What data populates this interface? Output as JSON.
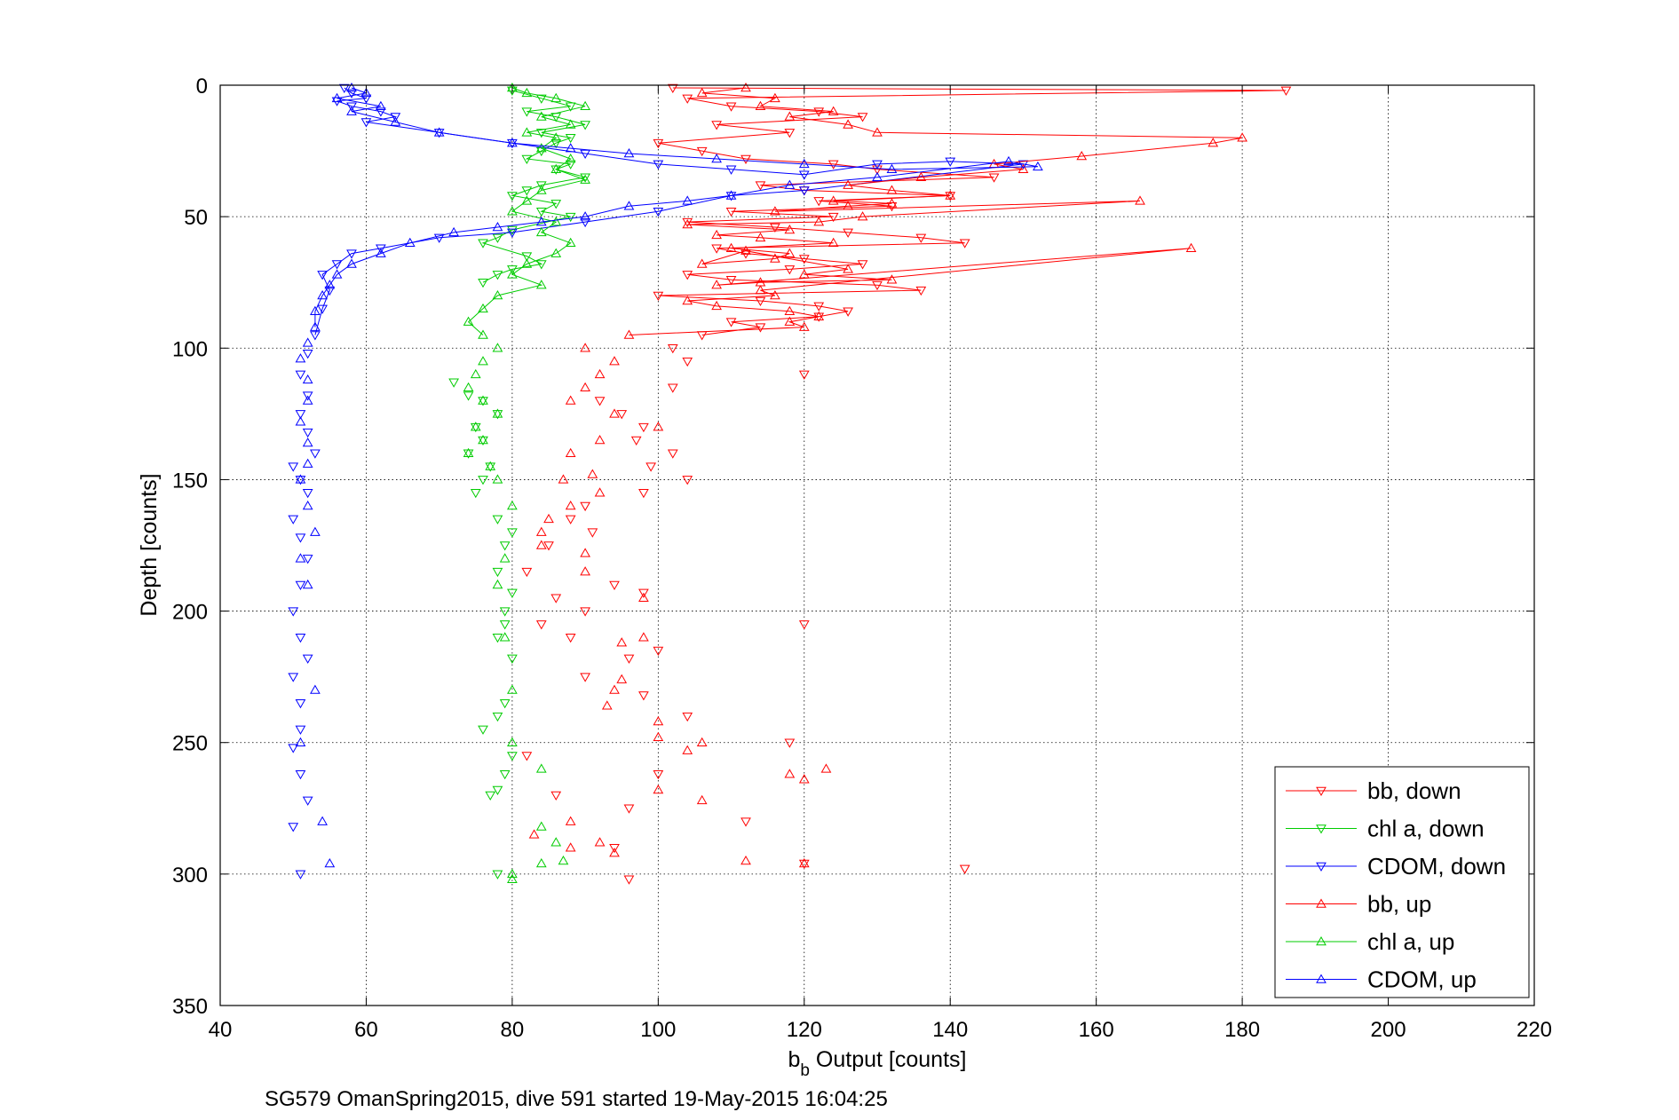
{
  "chart_data": {
    "type": "scatter",
    "title": "",
    "xlabel_main": "b",
    "xlabel_sub": "b",
    "xlabel_rest": " Output [counts]",
    "ylabel": "Depth [counts]",
    "footer": "SG579 OmanSpring2015, dive 591 started 19-May-2015 16:04:25",
    "xlim": [
      40,
      220
    ],
    "ylim": [
      0,
      350
    ],
    "y_reversed": true,
    "grid": true,
    "legend_position": "bottom-right",
    "xticks": [
      "40",
      "60",
      "80",
      "100",
      "120",
      "140",
      "160",
      "180",
      "200",
      "220"
    ],
    "yticks": [
      "0",
      "50",
      "100",
      "150",
      "200",
      "250",
      "300",
      "350"
    ],
    "series": [
      {
        "name": "bb, down",
        "color": "#ff0000",
        "marker": "triangle-down",
        "x": [
          102,
          186,
          104,
          110,
          122,
          128,
          108,
          118,
          100,
          106,
          112,
          124,
          130,
          146,
          114,
          120,
          140,
          122,
          132,
          110,
          124,
          104,
          116,
          126,
          136,
          142,
          108,
          112,
          120,
          128,
          118,
          104,
          110,
          130,
          136,
          100,
          114,
          122,
          126,
          122,
          110,
          114,
          106,
          102,
          104,
          120,
          102,
          92,
          95,
          98,
          97,
          102,
          99,
          104,
          98,
          90,
          88,
          91,
          85,
          82,
          94,
          98,
          86,
          90,
          84,
          88,
          100,
          120,
          96,
          90,
          98,
          104,
          118,
          82,
          100,
          86,
          96,
          112,
          142,
          120,
          96,
          94
        ],
        "y": [
          1,
          2,
          5,
          8,
          10,
          12,
          15,
          18,
          22,
          25,
          28,
          30,
          32,
          35,
          38,
          40,
          42,
          44,
          46,
          48,
          50,
          52,
          54,
          56,
          58,
          60,
          62,
          64,
          66,
          68,
          70,
          72,
          74,
          76,
          78,
          80,
          82,
          84,
          86,
          88,
          90,
          92,
          95,
          100,
          105,
          110,
          115,
          120,
          125,
          130,
          135,
          140,
          145,
          150,
          155,
          160,
          165,
          170,
          175,
          185,
          190,
          193,
          195,
          200,
          205,
          210,
          215,
          205,
          218,
          225,
          232,
          240,
          250,
          255,
          262,
          270,
          275,
          280,
          298,
          296,
          302,
          290
        ]
      },
      {
        "name": "chl a, down",
        "color": "#00cc00",
        "marker": "triangle-down",
        "x": [
          80,
          84,
          88,
          82,
          86,
          90,
          84,
          88,
          86,
          84,
          82,
          88,
          86,
          90,
          84,
          82,
          80,
          86,
          84,
          88,
          80,
          78,
          76,
          82,
          84,
          80,
          78,
          76,
          72,
          74,
          76,
          78,
          75,
          76,
          74,
          77,
          76,
          75,
          78,
          80,
          79,
          78,
          80,
          79,
          79,
          78,
          80,
          79,
          78,
          76,
          80,
          79,
          78,
          77,
          78
        ],
        "y": [
          2,
          5,
          8,
          10,
          12,
          15,
          18,
          20,
          22,
          25,
          28,
          30,
          32,
          35,
          38,
          40,
          42,
          45,
          48,
          50,
          55,
          58,
          60,
          65,
          68,
          70,
          72,
          75,
          113,
          118,
          120,
          125,
          130,
          135,
          140,
          145,
          150,
          155,
          165,
          170,
          175,
          185,
          193,
          200,
          205,
          210,
          218,
          235,
          240,
          245,
          255,
          262,
          268,
          270,
          300
        ]
      },
      {
        "name": "CDOM, down",
        "color": "#0000ff",
        "marker": "triangle-down",
        "x": [
          57,
          58,
          60,
          56,
          58,
          62,
          64,
          60,
          70,
          80,
          90,
          100,
          110,
          120,
          130,
          140,
          150,
          120,
          110,
          100,
          90,
          80,
          70,
          62,
          58,
          56,
          54,
          55,
          54,
          53,
          52,
          51,
          52,
          51,
          52,
          53,
          50,
          51,
          52,
          50,
          51,
          52,
          51,
          50,
          51,
          52,
          50,
          51,
          51,
          50,
          51,
          52,
          50,
          51
        ],
        "y": [
          1,
          3,
          5,
          6,
          8,
          10,
          12,
          14,
          18,
          22,
          26,
          30,
          32,
          34,
          30,
          29,
          30,
          40,
          42,
          48,
          52,
          56,
          58,
          62,
          64,
          68,
          72,
          78,
          85,
          95,
          102,
          110,
          118,
          125,
          132,
          140,
          145,
          150,
          155,
          165,
          172,
          180,
          190,
          200,
          210,
          218,
          225,
          235,
          245,
          252,
          262,
          272,
          282,
          300
        ]
      },
      {
        "name": "bb, up",
        "color": "#ff0000",
        "marker": "triangle-up",
        "x": [
          112,
          106,
          116,
          114,
          124,
          118,
          126,
          130,
          180,
          176,
          158,
          146,
          150,
          136,
          126,
          132,
          140,
          124,
          132,
          126,
          116,
          166,
          128,
          122,
          104,
          118,
          108,
          114,
          124,
          110,
          118,
          116,
          106,
          112,
          126,
          120,
          132,
          114,
          108,
          173,
          114,
          116,
          104,
          108,
          118,
          122,
          118,
          120,
          96,
          90,
          94,
          92,
          90,
          88,
          94,
          100,
          92,
          88,
          91,
          87,
          92,
          88,
          85,
          84,
          84,
          90,
          90,
          98,
          98,
          95,
          95,
          94,
          93,
          100,
          100,
          106,
          104,
          123,
          118,
          120,
          100,
          106,
          88,
          83,
          92,
          88,
          94,
          112,
          120
        ],
        "y": [
          1,
          3,
          5,
          8,
          10,
          12,
          15,
          18,
          20,
          22,
          27,
          30,
          32,
          35,
          38,
          40,
          42,
          44,
          45,
          46,
          48,
          44,
          50,
          52,
          53,
          55,
          57,
          58,
          60,
          62,
          64,
          66,
          68,
          63,
          70,
          72,
          74,
          75,
          76,
          62,
          78,
          80,
          82,
          84,
          86,
          88,
          90,
          92,
          95,
          100,
          105,
          110,
          115,
          120,
          125,
          130,
          135,
          140,
          148,
          150,
          155,
          160,
          165,
          170,
          175,
          178,
          185,
          195,
          210,
          212,
          226,
          230,
          236,
          242,
          248,
          250,
          253,
          260,
          262,
          264,
          268,
          272,
          280,
          285,
          288,
          290,
          292,
          295,
          296
        ]
      },
      {
        "name": "chl a, up",
        "color": "#00cc00",
        "marker": "triangle-up",
        "x": [
          80,
          82,
          86,
          90,
          84,
          88,
          82,
          86,
          84,
          88,
          86,
          90,
          84,
          82,
          80,
          86,
          84,
          88,
          86,
          82,
          80,
          84,
          78,
          76,
          74,
          76,
          78,
          76,
          75,
          74,
          76,
          78,
          75,
          76,
          74,
          77,
          78,
          80,
          79,
          78,
          79,
          80,
          80,
          84,
          84,
          86,
          87,
          84,
          80,
          80
        ],
        "y": [
          1,
          3,
          5,
          8,
          12,
          15,
          18,
          20,
          24,
          28,
          32,
          36,
          40,
          44,
          48,
          52,
          56,
          60,
          64,
          68,
          72,
          76,
          80,
          85,
          90,
          95,
          100,
          105,
          110,
          115,
          120,
          125,
          130,
          135,
          140,
          145,
          150,
          160,
          180,
          190,
          210,
          230,
          250,
          260,
          282,
          288,
          295,
          296,
          300,
          302
        ]
      },
      {
        "name": "CDOM, up",
        "color": "#0000ff",
        "marker": "triangle-up",
        "x": [
          58,
          60,
          56,
          62,
          58,
          64,
          70,
          80,
          88,
          96,
          108,
          120,
          132,
          152,
          148,
          130,
          118,
          110,
          104,
          96,
          90,
          84,
          78,
          72,
          66,
          62,
          58,
          56,
          55,
          54,
          53,
          53,
          52,
          51,
          52,
          52,
          51,
          52,
          52,
          51,
          52,
          53,
          51,
          52,
          53,
          51,
          54,
          55
        ],
        "y": [
          1,
          3,
          5,
          8,
          10,
          14,
          18,
          22,
          24,
          26,
          28,
          30,
          32,
          31,
          29,
          35,
          38,
          42,
          44,
          46,
          50,
          52,
          54,
          56,
          60,
          64,
          68,
          72,
          76,
          80,
          86,
          92,
          98,
          104,
          112,
          120,
          128,
          136,
          144,
          150,
          160,
          170,
          180,
          190,
          230,
          250,
          280,
          296
        ]
      }
    ]
  }
}
